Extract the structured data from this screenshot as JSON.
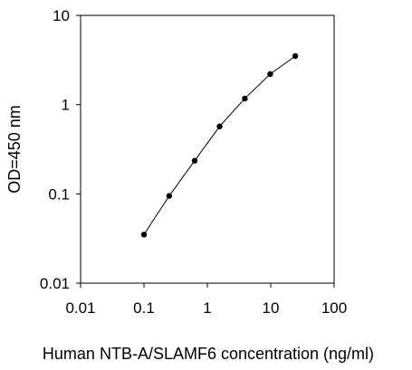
{
  "chart_data": {
    "type": "line",
    "xlabel": "Human NTB-A/SLAMF6 concentration (ng/ml)",
    "ylabel": "OD=450 nm",
    "x_scale": "log",
    "y_scale": "log",
    "xlim": [
      0.01,
      100
    ],
    "ylim": [
      0.01,
      10
    ],
    "x_ticks": [
      "0.01",
      "0.1",
      "1",
      "10",
      "100"
    ],
    "y_ticks": [
      "0.01",
      "0.1",
      "1",
      "10"
    ],
    "grid": false,
    "series": [
      {
        "x": [
          0.1,
          0.25,
          0.63,
          1.56,
          3.9,
          9.8,
          24.4
        ],
        "y": [
          0.035,
          0.095,
          0.235,
          0.57,
          1.17,
          2.2,
          3.5
        ],
        "color": "#000000",
        "marker": "circle"
      }
    ]
  }
}
